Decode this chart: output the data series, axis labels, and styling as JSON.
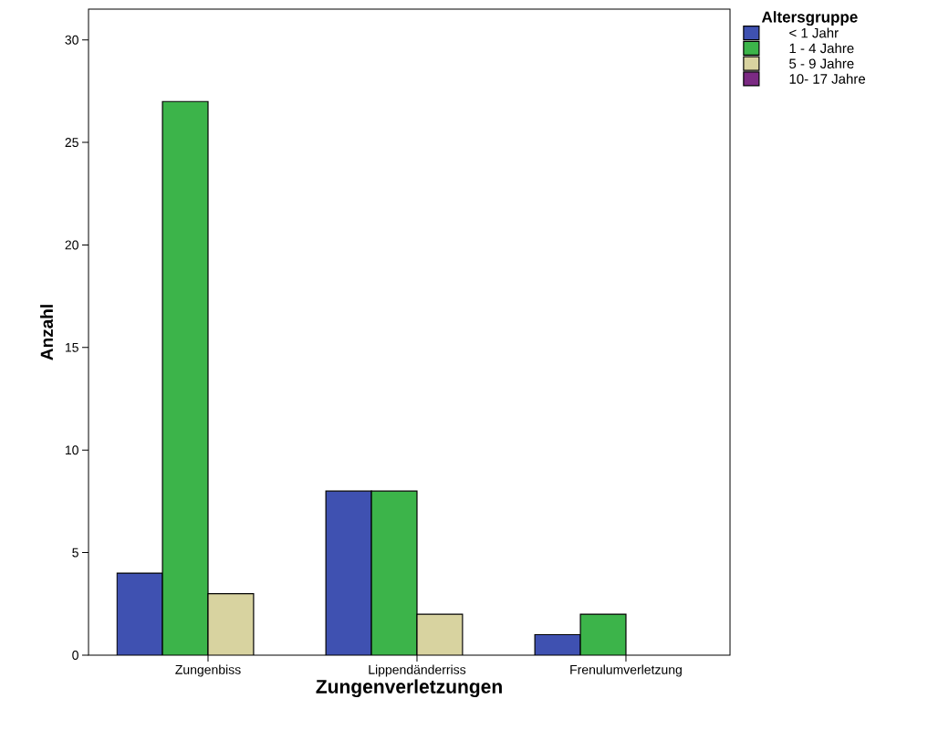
{
  "chart_data": {
    "type": "bar",
    "xlabel": "Zungenverletzungen",
    "ylabel": "Anzahl",
    "legend_title": "Altersgruppe",
    "categories": [
      "Zungenbiss",
      "Lippendänderriss",
      "Frenulumverletzung"
    ],
    "series": [
      {
        "name": "< 1 Jahr",
        "color": "#3f51b1",
        "values": [
          4,
          8,
          1
        ]
      },
      {
        "name": "1 - 4 Jahre",
        "color": "#3cb44a",
        "values": [
          27,
          8,
          2
        ]
      },
      {
        "name": "5 - 9 Jahre",
        "color": "#d8d3a0",
        "values": [
          3,
          2,
          null
        ]
      },
      {
        "name": "10- 17  Jahre",
        "color": "#7b2a83",
        "values": [
          null,
          null,
          null
        ]
      }
    ],
    "ylim": [
      0,
      31.5
    ],
    "yticks": [
      0,
      5,
      10,
      15,
      20,
      25,
      30
    ],
    "grid": false,
    "legend": "top right"
  }
}
